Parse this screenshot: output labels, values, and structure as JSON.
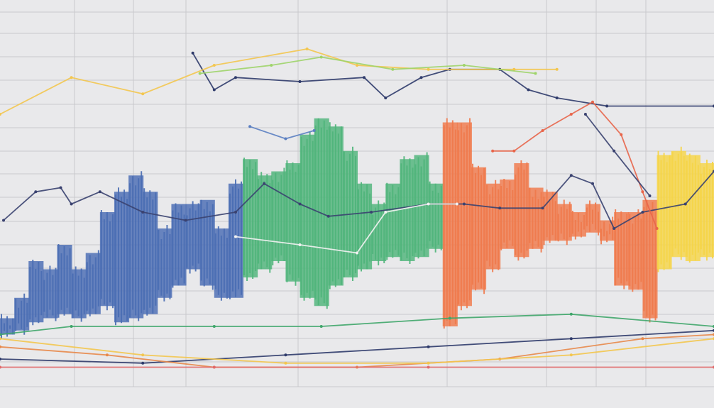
{
  "chart_data": {
    "type": "bar",
    "title": "",
    "xlabel": "",
    "ylabel": "",
    "xlim": [
      0,
      100
    ],
    "ylim": [
      0,
      100
    ],
    "grid": true,
    "legend": "none",
    "background": "#e9e9eb",
    "grid_color": "#c9c9cd",
    "bars": {
      "x": [
        1,
        3,
        5,
        7,
        9,
        11,
        13,
        15,
        17,
        19,
        21,
        23,
        25,
        27,
        29,
        31,
        33,
        35,
        37,
        39,
        41,
        43,
        45,
        47,
        49,
        51,
        53,
        55,
        57,
        59,
        61,
        63,
        65,
        67,
        69,
        71,
        73,
        75,
        77,
        79,
        81,
        83,
        85,
        87,
        89,
        91,
        93,
        95,
        97,
        99
      ],
      "high": [
        22,
        27,
        36,
        34,
        40,
        34,
        38,
        48,
        53,
        57,
        53,
        44,
        50,
        50,
        51,
        44,
        55,
        61,
        57,
        58,
        60,
        67,
        71,
        69,
        63,
        55,
        50,
        55,
        61,
        62,
        55,
        70,
        70,
        59,
        55,
        56,
        60,
        54,
        53,
        50,
        48,
        50,
        46,
        48,
        48,
        51,
        62,
        63,
        62,
        60
      ],
      "low": [
        18,
        19,
        21,
        22,
        23,
        22,
        23,
        25,
        21,
        22,
        23,
        27,
        30,
        34,
        30,
        27,
        27,
        32,
        34,
        36,
        31,
        27,
        25,
        30,
        32,
        34,
        36,
        37,
        36,
        37,
        39,
        20,
        25,
        29,
        34,
        39,
        37,
        39,
        41,
        41,
        42,
        43,
        41,
        30,
        29,
        22,
        34,
        37,
        36,
        37
      ],
      "color_groups": [
        {
          "from": 1,
          "to": 33,
          "color": "#4a6db3"
        },
        {
          "from": 35,
          "to": 61,
          "color": "#4fb57a"
        },
        {
          "from": 63,
          "to": 91,
          "color": "#f07a4c"
        },
        {
          "from": 93,
          "to": 99,
          "color": "#f6d548"
        }
      ]
    },
    "series": [
      {
        "color": "#2f3b6b",
        "x": [
          27,
          30,
          33,
          42,
          51,
          54,
          59,
          63,
          70,
          74,
          78,
          85,
          100
        ],
        "y": [
          87,
          78,
          81,
          80,
          81,
          76,
          81,
          83,
          83,
          78,
          76,
          74,
          74
        ]
      },
      {
        "color": "#3a4270",
        "x": [
          0.5,
          5,
          8.5,
          10,
          14,
          20,
          26,
          33,
          37,
          42,
          46,
          52,
          60,
          65,
          70,
          76,
          80,
          83,
          86,
          90,
          96,
          100
        ],
        "y": [
          46,
          53,
          54,
          50,
          53,
          48,
          46,
          48,
          55,
          50,
          47,
          48,
          50,
          50,
          49,
          49,
          57,
          55,
          44,
          48,
          50,
          58
        ]
      },
      {
        "color": "#e8654a",
        "x": [
          69,
          72,
          76,
          80,
          83,
          87,
          90,
          92
        ],
        "y": [
          63,
          63,
          68,
          72,
          75,
          67,
          53,
          44
        ]
      },
      {
        "color": "#3a4270",
        "x": [
          82,
          86,
          91
        ],
        "y": [
          72,
          63,
          52
        ]
      },
      {
        "color": "#5b7fc2",
        "x": [
          35,
          40,
          44
        ],
        "y": [
          69,
          66,
          68
        ]
      },
      {
        "color": "#f3c64f",
        "x": [
          0,
          10,
          20,
          30,
          43,
          50,
          60,
          72,
          78
        ],
        "y": [
          72,
          81,
          77,
          84,
          88,
          84,
          83,
          83,
          83
        ]
      },
      {
        "color": "#9fd46a",
        "x": [
          28,
          38,
          45,
          55,
          65,
          75
        ],
        "y": [
          82,
          84,
          86,
          83,
          84,
          82
        ]
      },
      {
        "color": "#f2f2f2",
        "x": [
          33,
          42,
          50,
          54,
          60,
          64
        ],
        "y": [
          42,
          40,
          38,
          48,
          50,
          50
        ]
      },
      {
        "color": "#2f3b6b",
        "x": [
          0,
          20,
          40,
          60,
          80,
          100
        ],
        "y": [
          12,
          11,
          13,
          15,
          17,
          19
        ]
      },
      {
        "color": "#3fa66a",
        "x": [
          0,
          10,
          30,
          45,
          63,
          80,
          100
        ],
        "y": [
          18,
          20,
          20,
          20,
          22,
          23,
          20
        ]
      },
      {
        "color": "#e8884a",
        "x": [
          0,
          15,
          30,
          50,
          70,
          90,
          100
        ],
        "y": [
          15,
          13,
          10,
          10,
          12,
          17,
          18
        ]
      },
      {
        "color": "#f3c64f",
        "x": [
          0,
          20,
          40,
          60,
          80,
          100
        ],
        "y": [
          17,
          13,
          11,
          11,
          13,
          17
        ]
      },
      {
        "color": "#e06a6a",
        "x": [
          0,
          30,
          60,
          100
        ],
        "y": [
          10,
          10,
          10,
          10
        ]
      }
    ]
  }
}
